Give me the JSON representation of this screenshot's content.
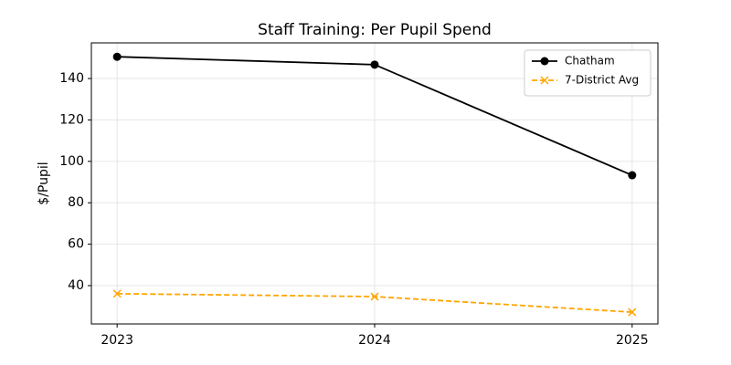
{
  "chart_data": {
    "type": "line",
    "title": "Staff Training: Per Pupil Spend",
    "y_label": "$/Pupil",
    "x": [
      2023,
      2024,
      2025
    ],
    "series": [
      {
        "name": "Chatham",
        "color": "#000000",
        "marker": "circle",
        "dash": "solid",
        "values": [
          150.5,
          146.7,
          93.3
        ]
      },
      {
        "name": "7-District Avg",
        "color": "#ffa500",
        "marker": "x",
        "dash": "dashed",
        "values": [
          36.1,
          34.7,
          27.2
        ]
      }
    ],
    "xlim": [
      2022.9,
      2025.1
    ],
    "xticks": [
      2023,
      2024,
      2025
    ],
    "ylim": [
      21.5,
      157.2
    ],
    "yticks": [
      40,
      60,
      80,
      100,
      120,
      140
    ],
    "grid": true,
    "legend": "upper right"
  }
}
